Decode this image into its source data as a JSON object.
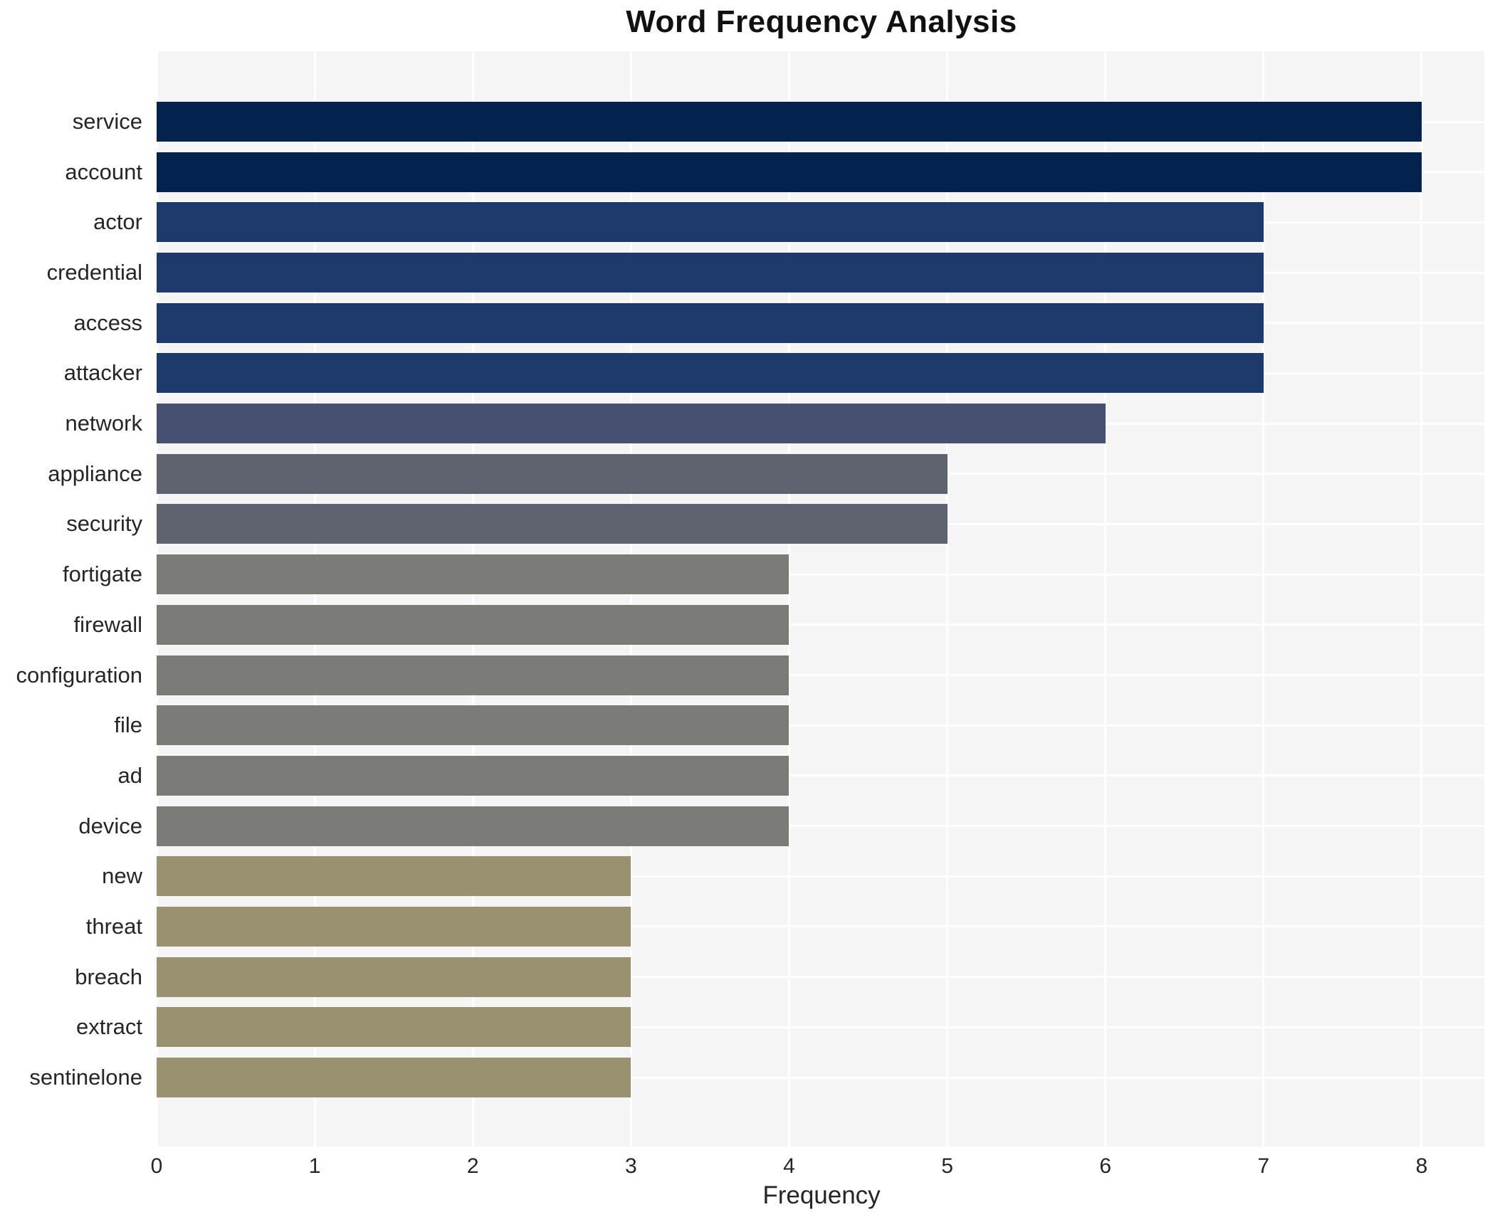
{
  "chart_data": {
    "type": "bar",
    "orientation": "horizontal",
    "title": "Word Frequency Analysis",
    "xlabel": "Frequency",
    "ylabel": "",
    "categories": [
      "service",
      "account",
      "actor",
      "credential",
      "access",
      "attacker",
      "network",
      "appliance",
      "security",
      "fortigate",
      "firewall",
      "configuration",
      "file",
      "ad",
      "device",
      "new",
      "threat",
      "breach",
      "extract",
      "sentinelone"
    ],
    "values": [
      8,
      8,
      7,
      7,
      7,
      7,
      6,
      5,
      5,
      4,
      4,
      4,
      4,
      4,
      4,
      3,
      3,
      3,
      3,
      3
    ],
    "xlim": [
      0,
      8.41
    ],
    "xticks": [
      0,
      1,
      2,
      3,
      4,
      5,
      6,
      7,
      8
    ],
    "grid": true,
    "legend": "none",
    "plot_background": "#f5f5f6",
    "figure_background": "#ffffff",
    "grid_color": "#ffffff",
    "text_color": "#262626",
    "colors_by_value": {
      "8": "#03234e",
      "7": "#1e3a6d",
      "6": "#475070",
      "5": "#5f636f",
      "4": "#7b7b78",
      "3": "#999170"
    }
  }
}
